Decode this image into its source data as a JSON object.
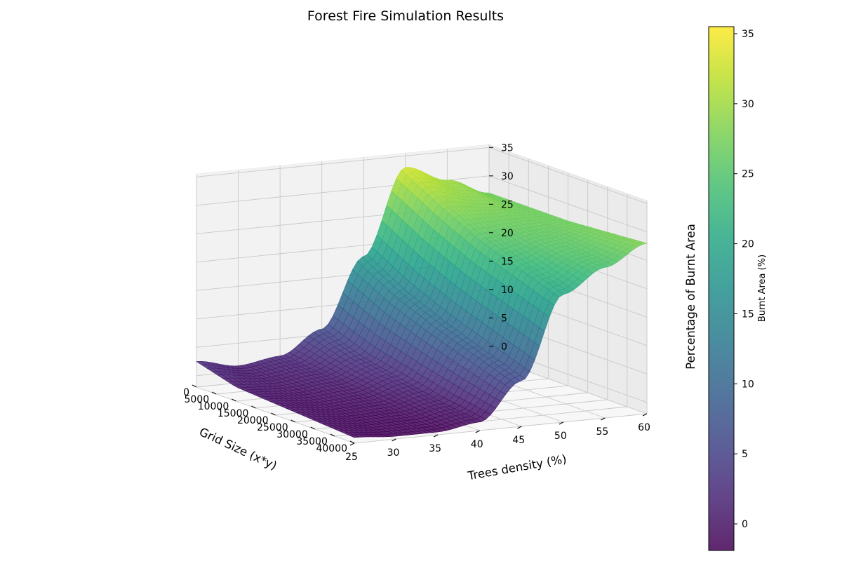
{
  "chart_data": {
    "type": "surface3d",
    "title": "Forest Fire Simulation Results",
    "xlabel": "Grid Size (x*y)",
    "ylabel": "Trees density (%)",
    "zlabel": "Percentage of Burnt Area",
    "xlim": [
      0,
      40000
    ],
    "ylim": [
      25,
      60
    ],
    "zlim": [
      -2,
      35.5
    ],
    "x_ticks": [
      0,
      5000,
      10000,
      15000,
      20000,
      25000,
      30000,
      35000,
      40000
    ],
    "y_ticks": [
      25,
      30,
      35,
      40,
      45,
      50,
      55,
      60
    ],
    "z_ticks": [
      0,
      5,
      10,
      15,
      20,
      25,
      30,
      35
    ],
    "x_tick_labels": [
      "0",
      "5000",
      "10000",
      "15000",
      "20000",
      "25000",
      "30000",
      "35000",
      "40000"
    ],
    "y_tick_labels": [
      "25",
      "30",
      "35",
      "40",
      "45",
      "50",
      "55",
      "60"
    ],
    "z_tick_labels": [
      "0",
      "5",
      "10",
      "15",
      "20",
      "25",
      "30",
      "35"
    ],
    "surface_samples": {
      "description_axis": "rows = trees density, columns = grid size",
      "densities": [
        25,
        30,
        35,
        40,
        45,
        50,
        55,
        60
      ],
      "grid_sizes": [
        0,
        10000,
        20000,
        30000,
        40000
      ],
      "burnt_area": [
        [
          2.5,
          0.5,
          0.0,
          -0.5,
          -1.0
        ],
        [
          1.0,
          0.2,
          -0.5,
          -1.0,
          -1.5
        ],
        [
          2.0,
          1.0,
          0.0,
          -0.8,
          -1.5
        ],
        [
          6.0,
          3.5,
          2.0,
          0.5,
          -0.5
        ],
        [
          18.0,
          14.0,
          11.0,
          8.5,
          6.0
        ],
        [
          33.0,
          29.0,
          25.5,
          23.0,
          20.5
        ],
        [
          30.0,
          28.0,
          26.5,
          25.5,
          24.5
        ],
        [
          27.0,
          27.0,
          27.0,
          27.5,
          28.0
        ]
      ]
    },
    "colormap": "viridis",
    "colorbar": {
      "label": "Burnt Area (%)",
      "ticks": [
        0,
        5,
        10,
        15,
        20,
        25,
        30,
        35
      ],
      "tick_labels": [
        "0",
        "5",
        "10",
        "15",
        "20",
        "25",
        "30",
        "35"
      ],
      "range": [
        -1.9,
        35.5
      ]
    },
    "grid": true
  }
}
